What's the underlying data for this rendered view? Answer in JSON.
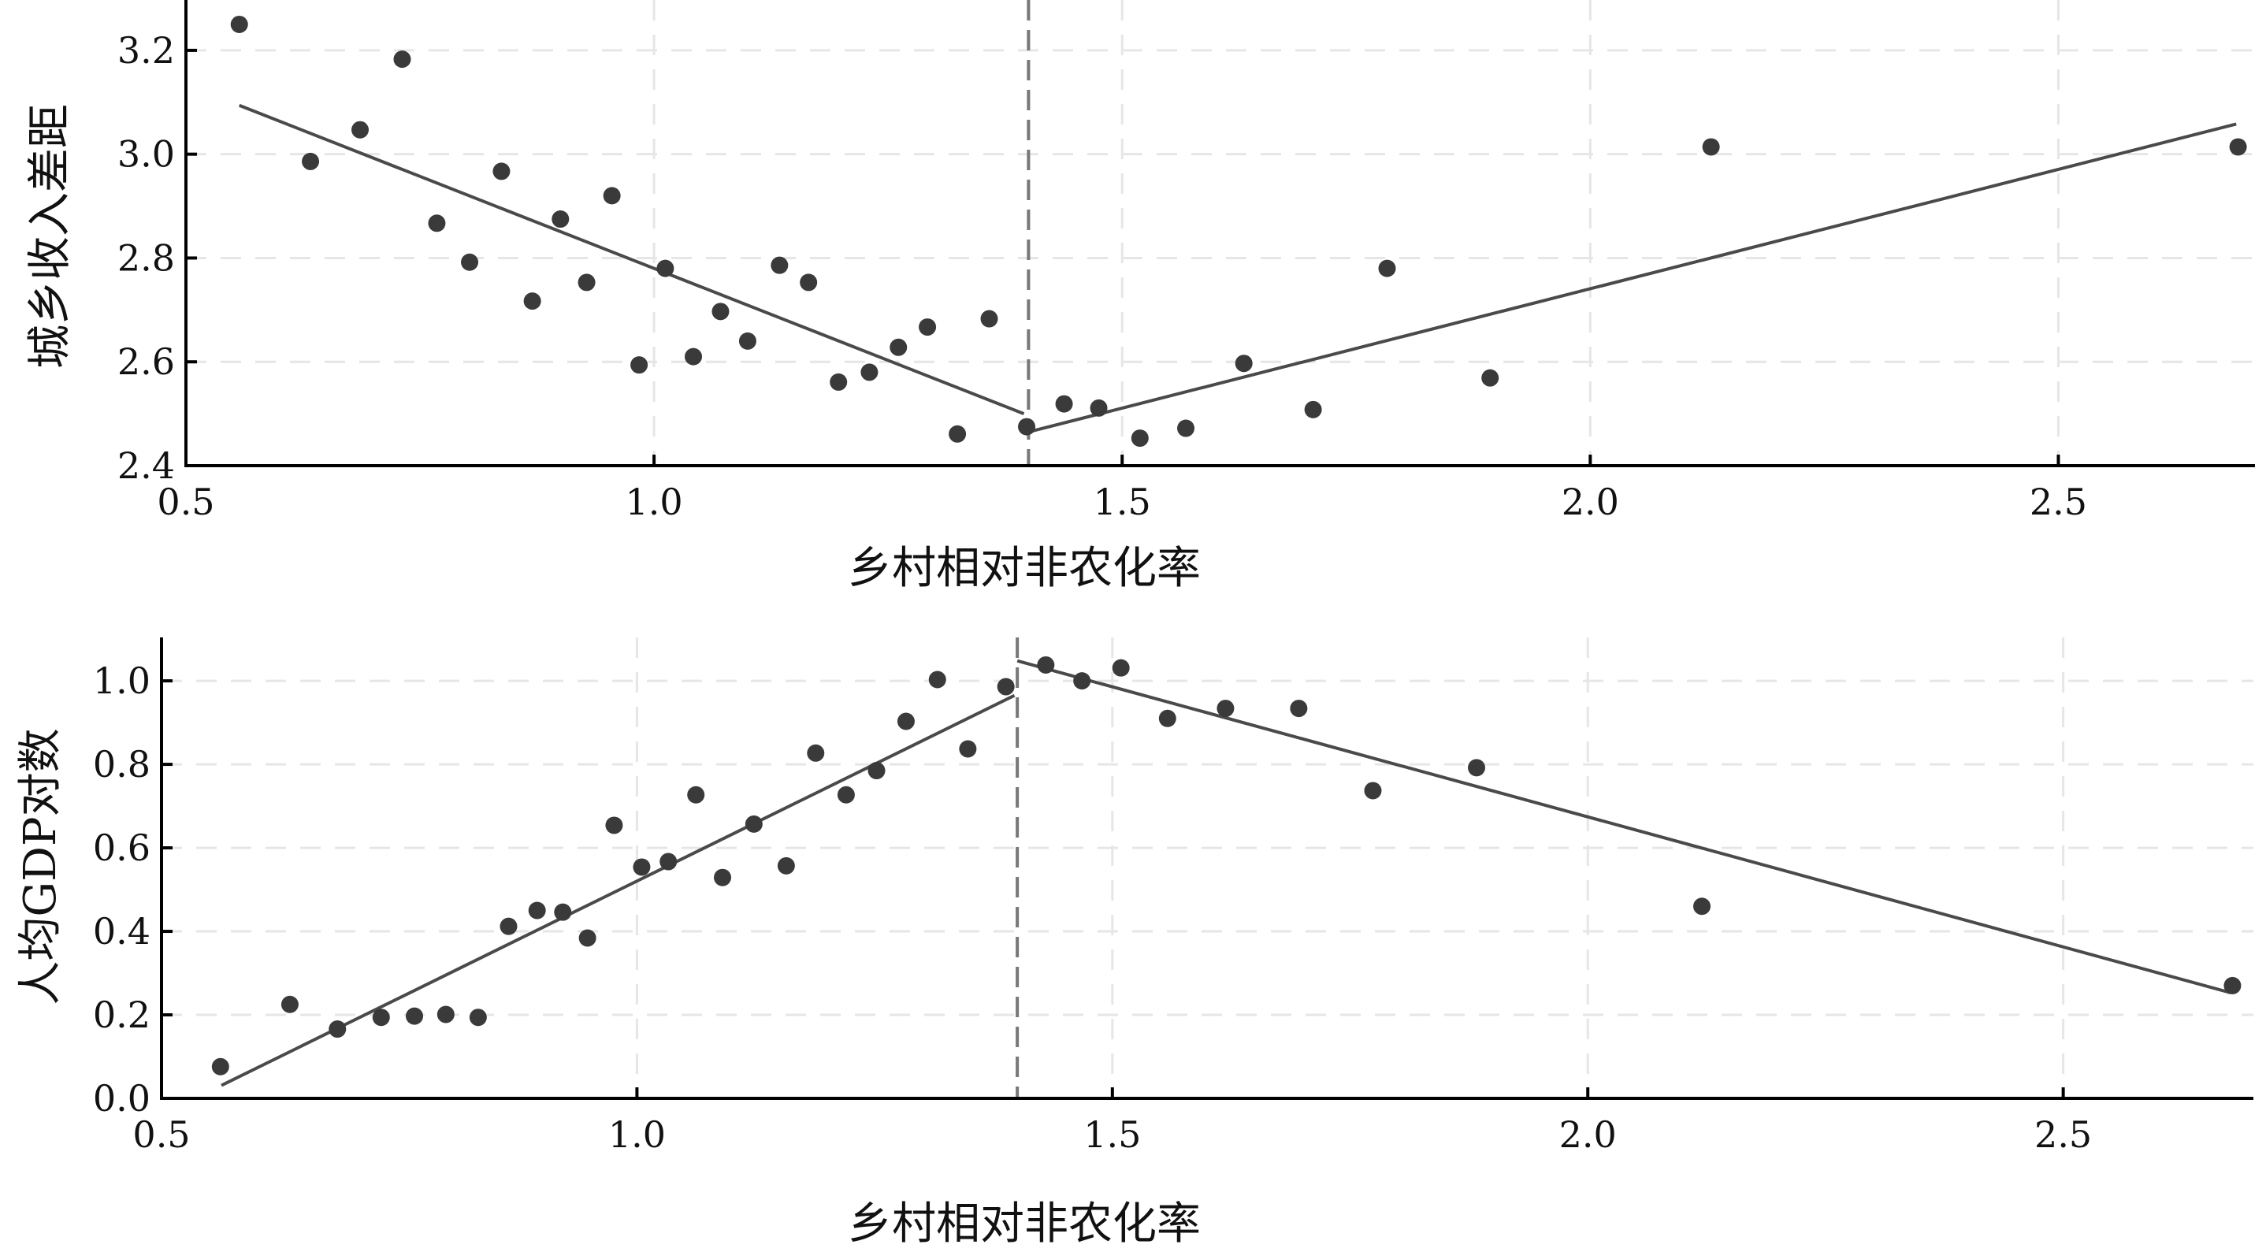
{
  "chart_data": [
    {
      "type": "scatter",
      "xlabel": "乡村相对非农化率",
      "ylabel": "城乡收入差距",
      "xlim": [
        0.5,
        2.71
      ],
      "ylim": [
        2.4,
        3.297
      ],
      "xticks": [
        "0.5",
        "1.0",
        "1.5",
        "2.0",
        "2.5"
      ],
      "xtick_values": [
        0.5,
        1.0,
        1.5,
        2.0,
        2.5
      ],
      "yticks": [
        "2.4",
        "2.6",
        "2.8",
        "3.0",
        "3.2"
      ],
      "ytick_values": [
        2.4,
        2.6,
        2.8,
        3.0,
        3.2
      ],
      "grid": true,
      "threshold_x": 1.4,
      "points": [
        [
          0.557,
          3.25
        ],
        [
          0.633,
          2.986
        ],
        [
          0.686,
          3.047
        ],
        [
          0.731,
          3.183
        ],
        [
          0.768,
          2.867
        ],
        [
          0.803,
          2.792
        ],
        [
          0.837,
          2.967
        ],
        [
          0.87,
          2.717
        ],
        [
          0.9,
          2.875
        ],
        [
          0.928,
          2.753
        ],
        [
          0.955,
          2.92
        ],
        [
          0.984,
          2.594
        ],
        [
          1.012,
          2.78
        ],
        [
          1.042,
          2.61
        ],
        [
          1.071,
          2.697
        ],
        [
          1.1,
          2.64
        ],
        [
          1.134,
          2.786
        ],
        [
          1.165,
          2.753
        ],
        [
          1.197,
          2.561
        ],
        [
          1.23,
          2.58
        ],
        [
          1.261,
          2.628
        ],
        [
          1.292,
          2.667
        ],
        [
          1.324,
          2.461
        ],
        [
          1.358,
          2.683
        ],
        [
          1.398,
          2.475
        ],
        [
          1.438,
          2.519
        ],
        [
          1.475,
          2.511
        ],
        [
          1.519,
          2.453
        ],
        [
          1.568,
          2.472
        ],
        [
          1.63,
          2.597
        ],
        [
          1.704,
          2.508
        ],
        [
          1.783,
          2.78
        ],
        [
          1.893,
          2.569
        ],
        [
          2.129,
          3.014
        ],
        [
          2.692,
          3.014
        ]
      ],
      "fit_lines": [
        [
          [
            0.557,
            3.094
          ],
          [
            1.395,
            2.5
          ]
        ],
        [
          [
            1.398,
            2.464
          ],
          [
            2.69,
            3.058
          ]
        ]
      ]
    },
    {
      "type": "scatter",
      "xlabel": "乡村相对非农化率",
      "ylabel": "人均GDP对数",
      "xlim": [
        0.5,
        2.7
      ],
      "ylim": [
        0.0,
        1.104
      ],
      "xticks": [
        "0.5",
        "1.0",
        "1.5",
        "2.0",
        "2.5"
      ],
      "xtick_values": [
        0.5,
        1.0,
        1.5,
        2.0,
        2.5
      ],
      "yticks": [
        "0.0",
        "0.2",
        "0.4",
        "0.6",
        "0.8",
        "1.0"
      ],
      "ytick_values": [
        0.0,
        0.2,
        0.4,
        0.6,
        0.8,
        1.0
      ],
      "grid": true,
      "threshold_x": 1.4,
      "points": [
        [
          0.562,
          0.076
        ],
        [
          0.635,
          0.225
        ],
        [
          0.685,
          0.166
        ],
        [
          0.731,
          0.194
        ],
        [
          0.766,
          0.197
        ],
        [
          0.799,
          0.201
        ],
        [
          0.833,
          0.194
        ],
        [
          0.865,
          0.412
        ],
        [
          0.895,
          0.45
        ],
        [
          0.922,
          0.446
        ],
        [
          0.948,
          0.384
        ],
        [
          0.976,
          0.654
        ],
        [
          1.005,
          0.554
        ],
        [
          1.033,
          0.567
        ],
        [
          1.062,
          0.727
        ],
        [
          1.09,
          0.529
        ],
        [
          1.123,
          0.657
        ],
        [
          1.157,
          0.557
        ],
        [
          1.188,
          0.827
        ],
        [
          1.22,
          0.727
        ],
        [
          1.252,
          0.785
        ],
        [
          1.283,
          0.903
        ],
        [
          1.316,
          1.003
        ],
        [
          1.348,
          0.837
        ],
        [
          1.388,
          0.986
        ],
        [
          1.43,
          1.038
        ],
        [
          1.468,
          1.0
        ],
        [
          1.509,
          1.031
        ],
        [
          1.558,
          0.91
        ],
        [
          1.619,
          0.934
        ],
        [
          1.696,
          0.934
        ],
        [
          1.774,
          0.737
        ],
        [
          1.883,
          0.792
        ],
        [
          2.12,
          0.46
        ],
        [
          2.678,
          0.27
        ]
      ],
      "fit_lines": [
        [
          [
            0.563,
            0.031
          ],
          [
            1.397,
            0.965
          ]
        ],
        [
          [
            1.4,
            1.048
          ],
          [
            2.676,
            0.253
          ]
        ]
      ]
    }
  ],
  "colors": {
    "point": "#3a3a3a",
    "line": "#4a4a4a",
    "grid": "#e6e6e6",
    "threshold": "#777777",
    "axis": "#000000"
  }
}
